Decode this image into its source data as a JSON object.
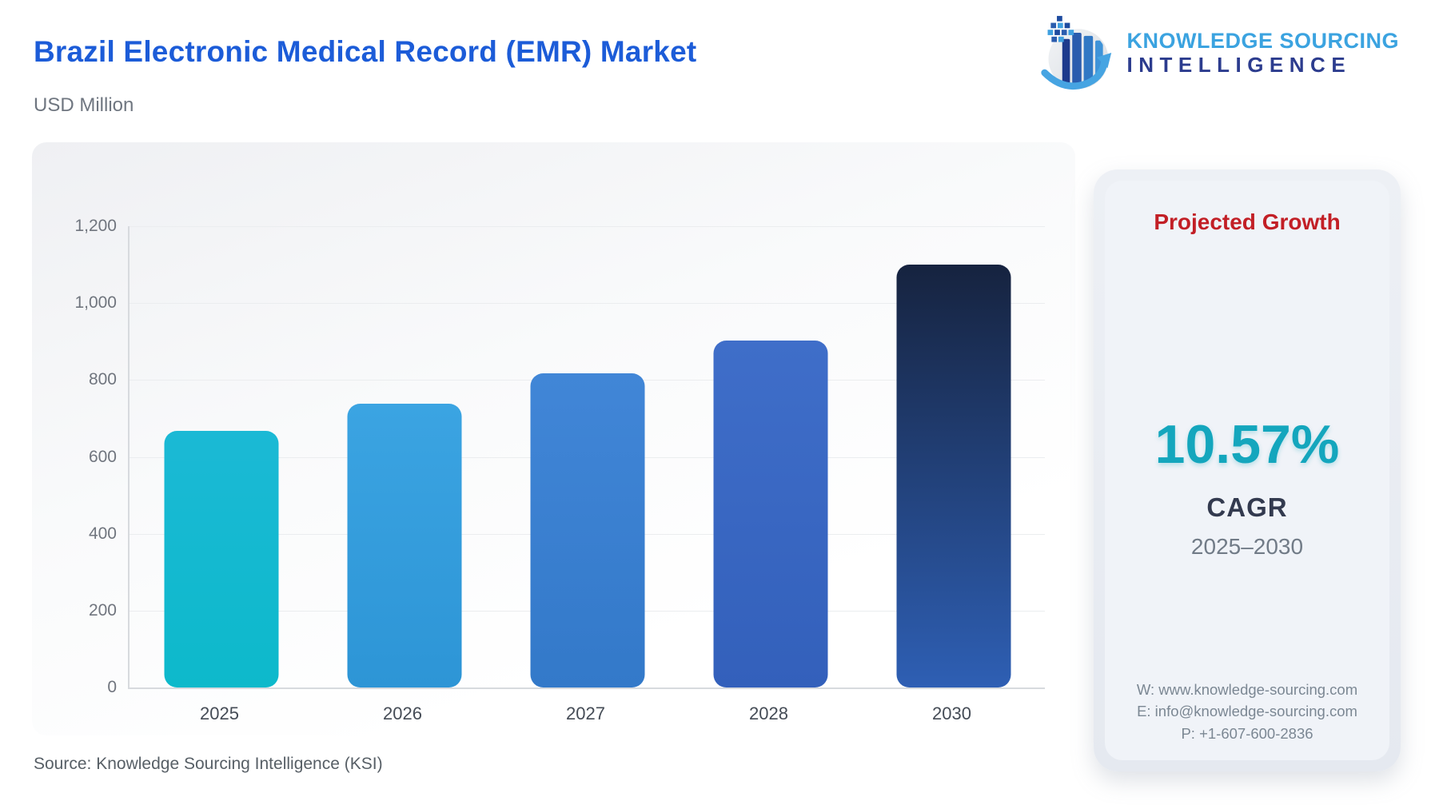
{
  "header": {
    "title": "Brazil Electronic Medical Record (EMR) Market",
    "subtitle": "USD Million"
  },
  "logo": {
    "line1": "KNOWLEDGE SOURCING",
    "line2": "INTELLIGENCE"
  },
  "chart_data": {
    "type": "bar",
    "title": "Brazil Electronic Medical Record (EMR) Market",
    "unit": "USD Million",
    "categories": [
      "2025",
      "2026",
      "2027",
      "2028",
      "2030"
    ],
    "values": [
      668,
      739,
      817,
      903,
      1100
    ],
    "ylim": [
      0,
      1200
    ],
    "yticks": [
      0,
      200,
      400,
      600,
      800,
      1000,
      1200
    ],
    "ytick_labels": [
      "0",
      "200",
      "400",
      "600",
      "800",
      "1,000",
      "1,200"
    ],
    "grid": true,
    "legend": "none",
    "bar_fills": [
      [
        "#1bb9d5",
        "#0db9cb"
      ],
      [
        "#3ba4e2",
        "#2d95d6"
      ],
      [
        "#4186d7",
        "#3379c9"
      ],
      [
        "#3f6ec9",
        "#3360bb"
      ],
      [
        "#16233f",
        "#2e5fb4"
      ]
    ]
  },
  "panel": {
    "title": "Projected Growth",
    "value": "10.57%",
    "label": "CAGR",
    "range": "2025–2030",
    "contact": {
      "website": "W: www.knowledge-sourcing.com",
      "email": "E: info@knowledge-sourcing.com",
      "phone": "P: +1-607-600-2836"
    }
  },
  "footer": {
    "source": "Source: Knowledge Sourcing Intelligence (KSI)"
  },
  "colors": {
    "title_blue": "#1c5cd8",
    "growth_red": "#c21f26",
    "cagr_teal": "#14a6bd",
    "logo_light_blue": "#3ba3e0",
    "logo_dark_blue": "#2c3c8e"
  }
}
